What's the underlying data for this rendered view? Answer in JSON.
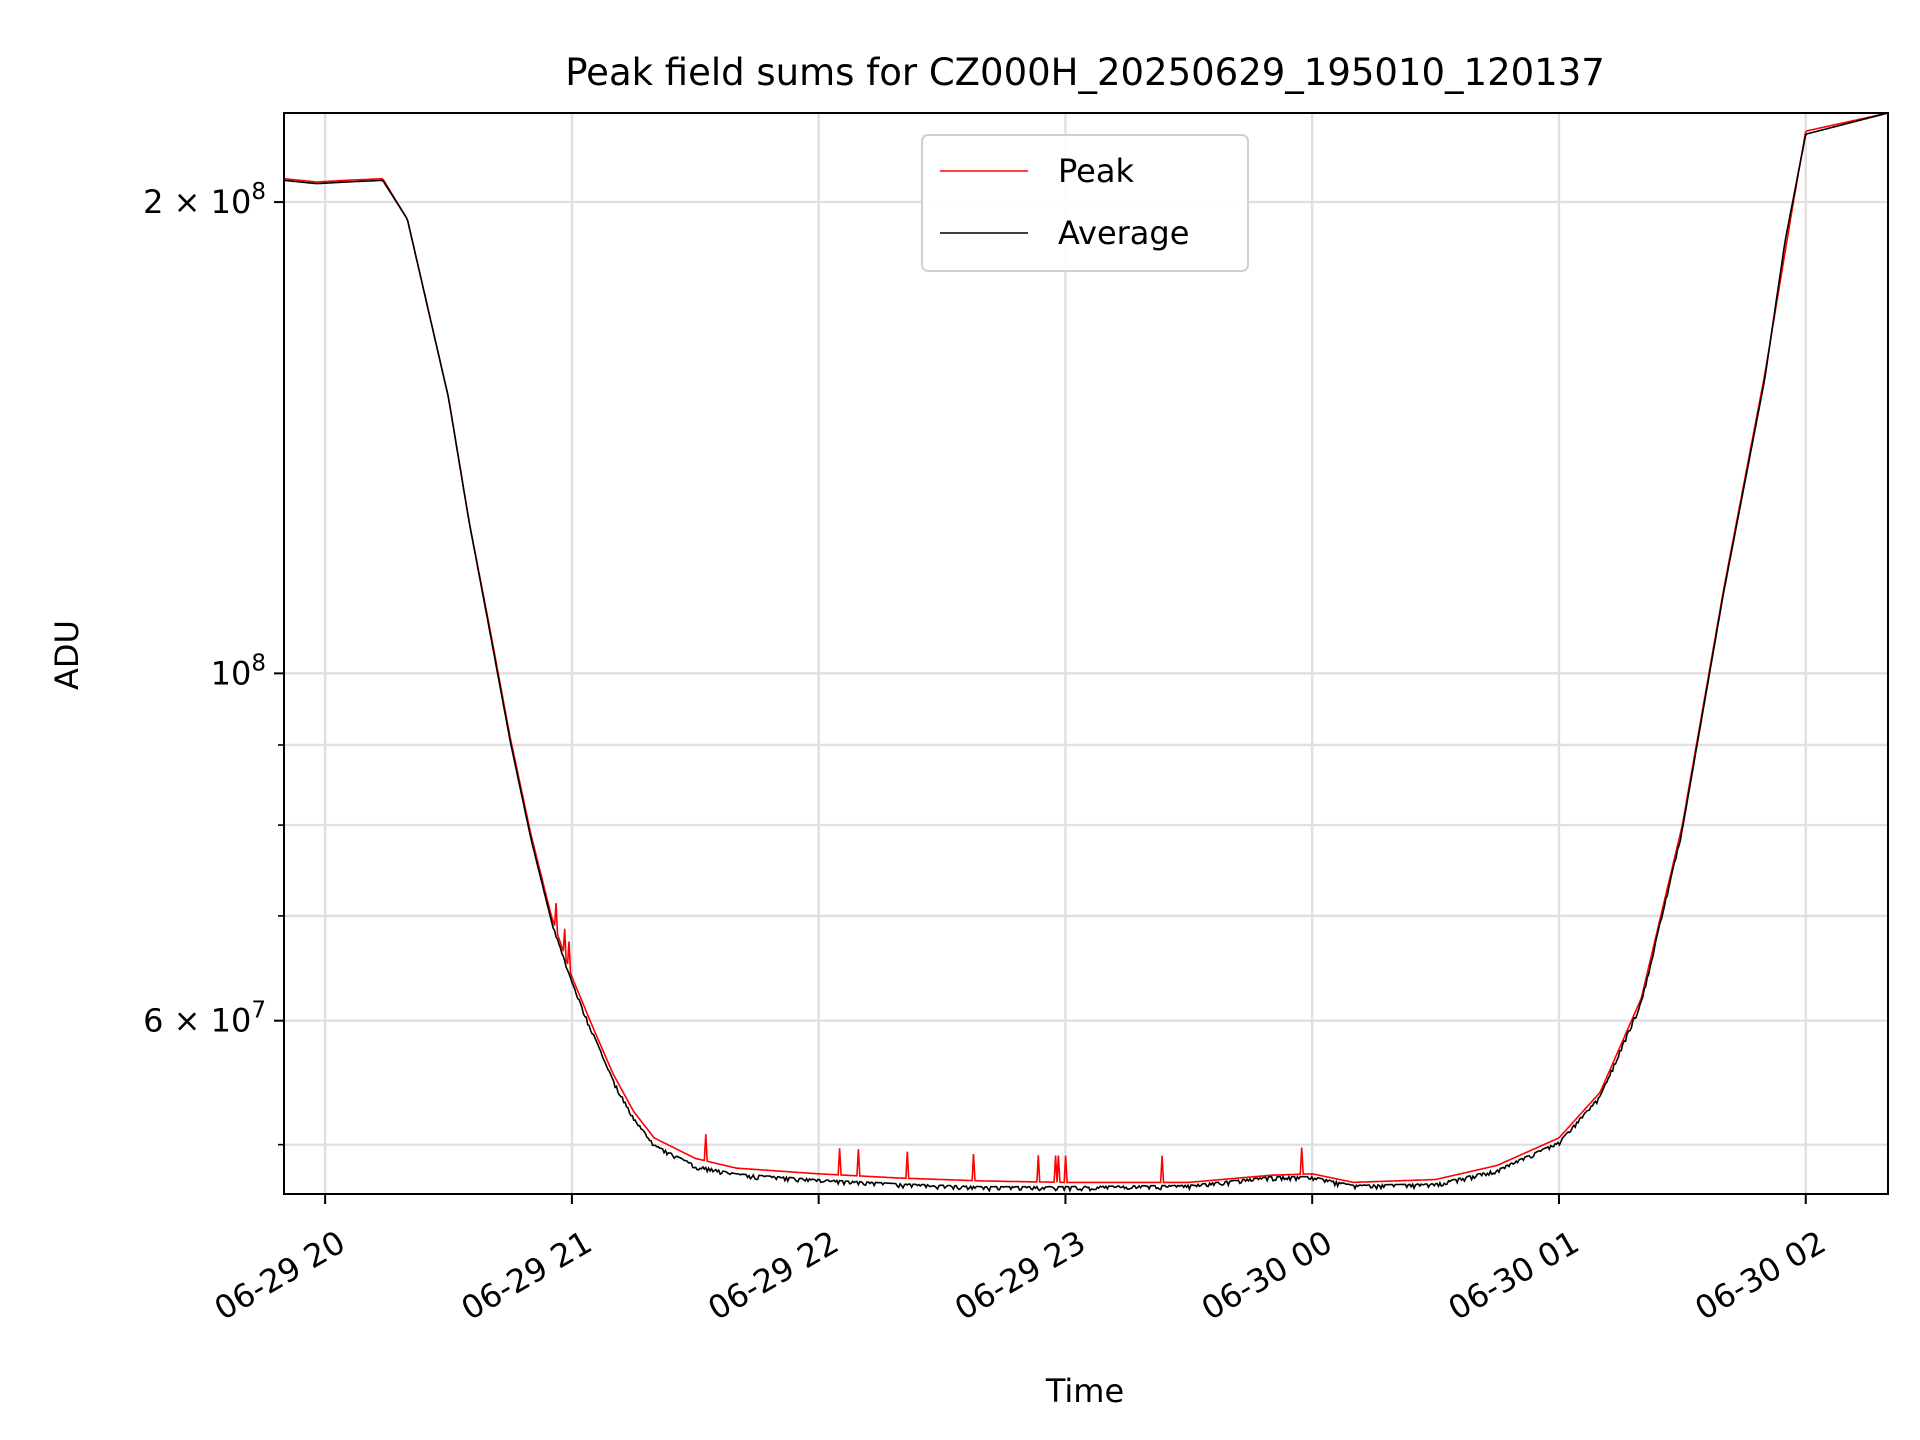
{
  "chart_data": {
    "type": "line",
    "title": "Peak field sums for CZ000H_20250629_195010_120137",
    "xlabel": "Time",
    "ylabel": "ADU",
    "y_scale": "log",
    "xlim": [
      "2025-06-29 19:50",
      "2025-06-30 02:20"
    ],
    "ylim": [
      46500000,
      228000000
    ],
    "x_tick_labels": [
      "06-29 20",
      "06-29 21",
      "06-29 22",
      "06-29 23",
      "06-30 00",
      "06-30 01",
      "06-30 02"
    ],
    "x_ticks": [
      "2025-06-29 20:00",
      "2025-06-29 21:00",
      "2025-06-29 22:00",
      "2025-06-29 23:00",
      "2025-06-30 00:00",
      "2025-06-30 01:00",
      "2025-06-30 02:00"
    ],
    "y_major_ticks": [
      {
        "value": 200000000,
        "label_mantissa": "2",
        "label_exp": "8"
      },
      {
        "value": 100000000,
        "label_mantissa": "",
        "label_exp": "8"
      },
      {
        "value": 60000000,
        "label_mantissa": "6",
        "label_exp": "7"
      }
    ],
    "y_minor_ticks": [
      50000000,
      70000000,
      80000000,
      90000000
    ],
    "grid": true,
    "legend_position": "top-center",
    "series": [
      {
        "name": "Peak",
        "color": "#ff0000",
        "points": [
          [
            "2025-06-29 19:50",
            207000000
          ],
          [
            "2025-06-29 19:58",
            206000000
          ],
          [
            "2025-06-29 20:05",
            206500000
          ],
          [
            "2025-06-29 20:14",
            207000000
          ],
          [
            "2025-06-29 20:20",
            195000000
          ],
          [
            "2025-06-29 20:30",
            150000000
          ],
          [
            "2025-06-29 20:35",
            125000000
          ],
          [
            "2025-06-29 20:40",
            107000000
          ],
          [
            "2025-06-29 20:45",
            91000000
          ],
          [
            "2025-06-29 20:50",
            79000000
          ],
          [
            "2025-06-29 20:55",
            70000000
          ],
          [
            "2025-06-29 21:00",
            64000000
          ],
          [
            "2025-06-29 21:05",
            59500000
          ],
          [
            "2025-06-29 21:10",
            55500000
          ],
          [
            "2025-06-29 21:15",
            52500000
          ],
          [
            "2025-06-29 21:20",
            50500000
          ],
          [
            "2025-06-29 21:30",
            49000000
          ],
          [
            "2025-06-29 21:40",
            48300000
          ],
          [
            "2025-06-29 22:00",
            47900000
          ],
          [
            "2025-06-29 22:20",
            47600000
          ],
          [
            "2025-06-29 22:40",
            47400000
          ],
          [
            "2025-06-29 23:00",
            47300000
          ],
          [
            "2025-06-29 23:30",
            47300000
          ],
          [
            "2025-06-29 23:50",
            47800000
          ],
          [
            "2025-06-30 00:00",
            47900000
          ],
          [
            "2025-06-30 00:10",
            47300000
          ],
          [
            "2025-06-30 00:30",
            47500000
          ],
          [
            "2025-06-30 00:45",
            48500000
          ],
          [
            "2025-06-30 01:00",
            50500000
          ],
          [
            "2025-06-30 01:10",
            54000000
          ],
          [
            "2025-06-30 01:20",
            62000000
          ],
          [
            "2025-06-30 01:30",
            80000000
          ],
          [
            "2025-06-30 01:40",
            113000000
          ],
          [
            "2025-06-30 01:50",
            155000000
          ],
          [
            "2025-06-30 01:57",
            200000000
          ],
          [
            "2025-06-30 02:00",
            222000000
          ],
          [
            "2025-06-30 02:20",
            228000000
          ]
        ]
      },
      {
        "name": "Average",
        "color": "#000000",
        "points": [
          [
            "2025-06-29 19:50",
            206500000
          ],
          [
            "2025-06-29 19:58",
            205500000
          ],
          [
            "2025-06-29 20:05",
            206000000
          ],
          [
            "2025-06-29 20:14",
            206500000
          ],
          [
            "2025-06-29 20:20",
            195000000
          ],
          [
            "2025-06-29 20:30",
            150000000
          ],
          [
            "2025-06-29 20:35",
            125000000
          ],
          [
            "2025-06-29 20:40",
            106500000
          ],
          [
            "2025-06-29 20:45",
            90500000
          ],
          [
            "2025-06-29 20:50",
            78500000
          ],
          [
            "2025-06-29 20:55",
            69500000
          ],
          [
            "2025-06-29 21:00",
            63500000
          ],
          [
            "2025-06-29 21:05",
            59000000
          ],
          [
            "2025-06-29 21:10",
            55000000
          ],
          [
            "2025-06-29 21:15",
            52000000
          ],
          [
            "2025-06-29 21:20",
            50000000
          ],
          [
            "2025-06-29 21:30",
            48500000
          ],
          [
            "2025-06-29 21:40",
            47900000
          ],
          [
            "2025-06-29 22:00",
            47500000
          ],
          [
            "2025-06-29 22:20",
            47200000
          ],
          [
            "2025-06-29 22:40",
            47000000
          ],
          [
            "2025-06-29 23:00",
            47000000
          ],
          [
            "2025-06-29 23:30",
            47100000
          ],
          [
            "2025-06-29 23:50",
            47700000
          ],
          [
            "2025-06-30 00:00",
            47700000
          ],
          [
            "2025-06-30 00:10",
            47100000
          ],
          [
            "2025-06-30 00:30",
            47200000
          ],
          [
            "2025-06-30 00:45",
            48200000
          ],
          [
            "2025-06-30 01:00",
            50200000
          ],
          [
            "2025-06-30 01:10",
            53700000
          ],
          [
            "2025-06-30 01:20",
            61700000
          ],
          [
            "2025-06-30 01:30",
            79500000
          ],
          [
            "2025-06-30 01:40",
            112500000
          ],
          [
            "2025-06-30 01:50",
            154000000
          ],
          [
            "2025-06-30 01:55",
            189000000
          ],
          [
            "2025-06-30 02:00",
            221000000
          ],
          [
            "2025-06-30 02:20",
            228000000
          ]
        ]
      }
    ]
  }
}
